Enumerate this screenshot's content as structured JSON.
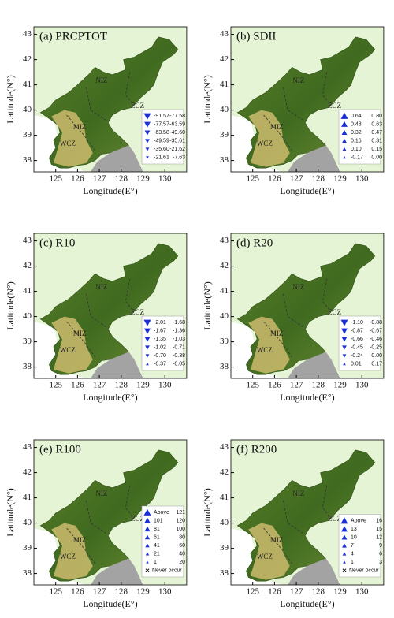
{
  "panels": [
    {
      "title": "(a) PRCPTOT",
      "y_label": "Latitude(N°)",
      "x_label": "Longitude(E°)",
      "yticks": [
        38,
        39,
        40,
        41,
        42,
        43
      ],
      "xticks": [
        125,
        126,
        127,
        128,
        129,
        130
      ],
      "zones": [
        "NIZ",
        "ECZ",
        "MIZ",
        "WCZ"
      ],
      "legend": {
        "rows": [
          [
            "-91.57",
            "-77.58"
          ],
          [
            "-77.57",
            "-63.59"
          ],
          [
            "-63.58",
            "-49.60"
          ],
          [
            "-49.59",
            "-35.61"
          ],
          [
            "-35.60",
            "-21.62"
          ],
          [
            "-21.61",
            "-7.63"
          ]
        ]
      }
    },
    {
      "title": "(b) SDII",
      "y_label": "Latitude(N°)",
      "x_label": "Longitude(E°)",
      "yticks": [
        38,
        39,
        40,
        41,
        42,
        43
      ],
      "xticks": [
        125,
        126,
        127,
        128,
        129,
        130
      ],
      "zones": [
        "NIZ",
        "ECZ",
        "MIZ",
        "WCZ"
      ],
      "legend": {
        "rows": [
          [
            "0.64",
            "0.80"
          ],
          [
            "0.48",
            "0.63"
          ],
          [
            "0.32",
            "0.47"
          ],
          [
            "0.16",
            "0.31"
          ],
          [
            "0.10",
            "0.15"
          ],
          [
            "-0.17",
            "0.00"
          ]
        ]
      }
    },
    {
      "title": "(c) R10",
      "y_label": "Latitude(N°)",
      "x_label": "Longitude(E°)",
      "yticks": [
        38,
        39,
        40,
        41,
        42,
        43
      ],
      "xticks": [
        125,
        126,
        127,
        128,
        129,
        130
      ],
      "zones": [
        "NIZ",
        "ECZ",
        "MIZ",
        "WCZ"
      ],
      "legend": {
        "rows": [
          [
            "-2.01",
            "-1.68"
          ],
          [
            "-1.67",
            "-1.36"
          ],
          [
            "-1.35",
            "-1.03"
          ],
          [
            "-1.02",
            "-0.71"
          ],
          [
            "-0.70",
            "-0.38"
          ],
          [
            "-0.37",
            "-0.05"
          ]
        ]
      }
    },
    {
      "title": "(d) R20",
      "y_label": "Latitude(N°)",
      "x_label": "Longitude(E°)",
      "yticks": [
        38,
        39,
        40,
        41,
        42,
        43
      ],
      "xticks": [
        125,
        126,
        127,
        128,
        129,
        130
      ],
      "zones": [
        "NIZ",
        "ECZ",
        "MIZ",
        "WCZ"
      ],
      "legend": {
        "rows": [
          [
            "-1.10",
            "-0.88"
          ],
          [
            "-0.87",
            "-0.67"
          ],
          [
            "-0.66",
            "-0.46"
          ],
          [
            "-0.45",
            "-0.25"
          ],
          [
            "-0.24",
            "0.00"
          ],
          [
            "0.01",
            "0.17"
          ]
        ]
      }
    },
    {
      "title": "(e) R100",
      "y_label": "Latitude(N°)",
      "x_label": "Longitude(E°)",
      "yticks": [
        38,
        39,
        40,
        41,
        42,
        43
      ],
      "xticks": [
        125,
        126,
        127,
        128,
        129,
        130
      ],
      "zones": [
        "NIZ",
        "ECZ",
        "MIZ",
        "WCZ"
      ],
      "legend": {
        "rows": [
          [
            "Above",
            "121"
          ],
          [
            "101",
            "120"
          ],
          [
            "81",
            "100"
          ],
          [
            "61",
            "80"
          ],
          [
            "41",
            "60"
          ],
          [
            "21",
            "40"
          ],
          [
            "1",
            "20"
          ]
        ],
        "never": "Never occur"
      }
    },
    {
      "title": "(f) R200",
      "y_label": "Latitude(N°)",
      "x_label": "Longitude(E°)",
      "yticks": [
        38,
        39,
        40,
        41,
        42,
        43
      ],
      "xticks": [
        125,
        126,
        127,
        128,
        129,
        130
      ],
      "zones": [
        "NIZ",
        "ECZ",
        "MIZ",
        "WCZ"
      ],
      "legend": {
        "rows": [
          [
            "Above",
            "16"
          ],
          [
            "13",
            "15"
          ],
          [
            "10",
            "12"
          ],
          [
            "7",
            "9"
          ],
          [
            "4",
            "6"
          ],
          [
            "1",
            "3"
          ]
        ],
        "never": "Never occur"
      }
    }
  ]
}
